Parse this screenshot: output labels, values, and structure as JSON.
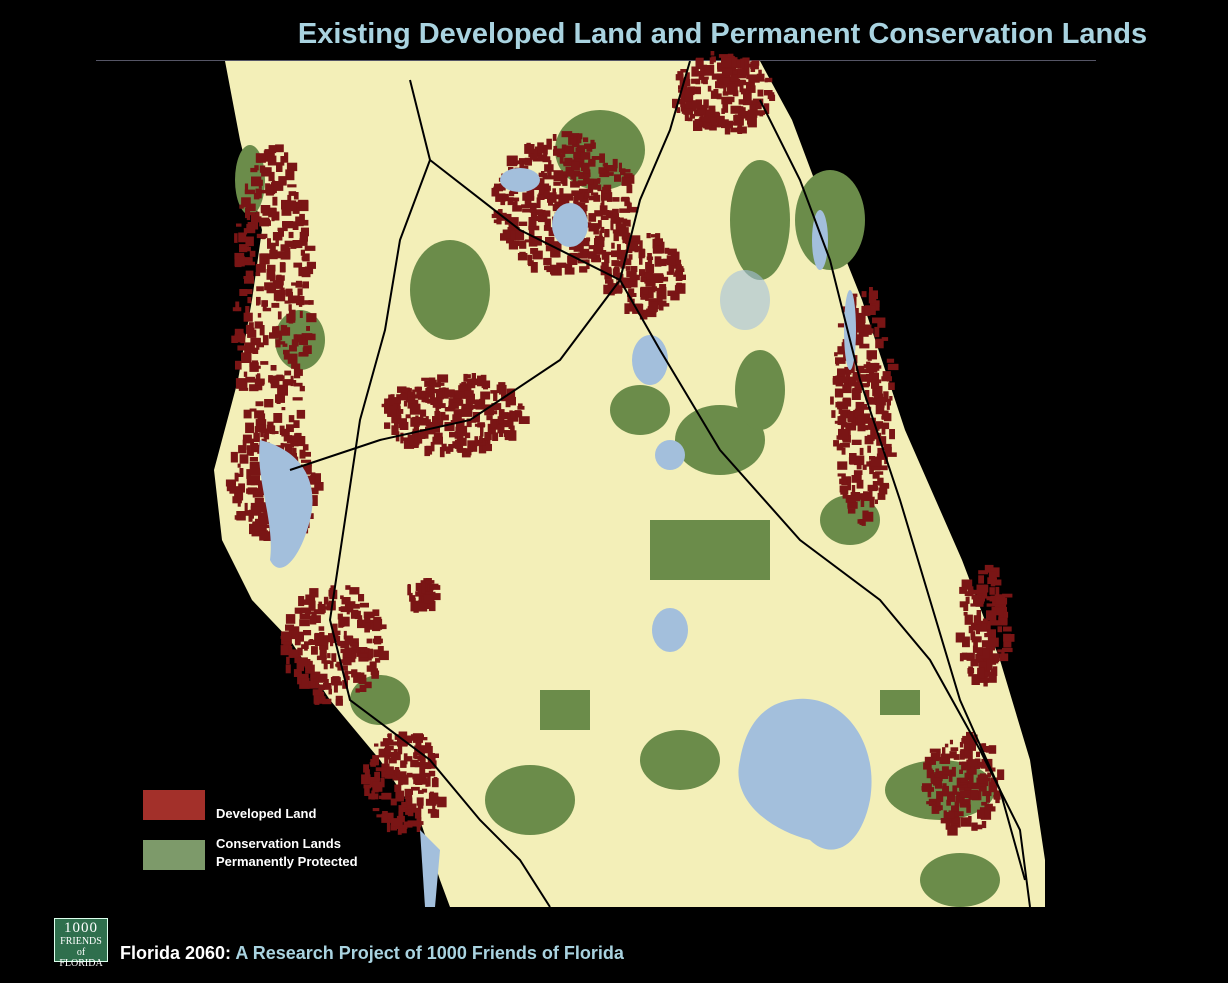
{
  "title": "Existing Developed Land and Permanent Conservation Lands",
  "legend": [
    {
      "label": "Developed Land",
      "color": "#a3302a"
    },
    {
      "label_lines": [
        "Conservation Lands",
        "Permanently Protected"
      ],
      "color": "#7d9a6a"
    }
  ],
  "logo": {
    "lines": [
      "1000",
      "FRIENDS",
      "of FLORIDA"
    ]
  },
  "footer": {
    "project": "Florida 2060:",
    "subtitle": "A Research Project of 1000 Friends of Florida"
  }
}
